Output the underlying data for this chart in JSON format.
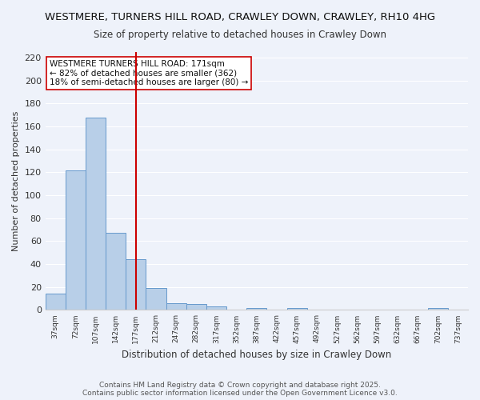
{
  "title1": "WESTMERE, TURNERS HILL ROAD, CRAWLEY DOWN, CRAWLEY, RH10 4HG",
  "title2": "Size of property relative to detached houses in Crawley Down",
  "xlabel": "Distribution of detached houses by size in Crawley Down",
  "ylabel": "Number of detached properties",
  "bar_values": [
    14,
    122,
    168,
    67,
    44,
    19,
    6,
    5,
    3,
    0,
    2,
    0,
    2,
    0,
    0,
    0,
    0,
    0,
    0,
    2,
    0
  ],
  "bar_labels": [
    "37sqm",
    "72sqm",
    "107sqm",
    "142sqm",
    "177sqm",
    "212sqm",
    "247sqm",
    "282sqm",
    "317sqm",
    "352sqm",
    "387sqm",
    "422sqm",
    "457sqm",
    "492sqm",
    "527sqm",
    "562sqm",
    "597sqm",
    "632sqm",
    "667sqm",
    "702sqm",
    "737sqm"
  ],
  "bar_color": "#b8cfe8",
  "bar_edge_color": "#6699cc",
  "bg_color": "#eef2fa",
  "grid_color": "#ffffff",
  "vline_x": 4.0,
  "vline_color": "#cc0000",
  "annotation_text": "WESTMERE TURNERS HILL ROAD: 171sqm\n← 82% of detached houses are smaller (362)\n18% of semi-detached houses are larger (80) →",
  "annotation_box_color": "#ffffff",
  "annotation_box_edge": "#cc0000",
  "ylim": [
    0,
    225
  ],
  "yticks": [
    0,
    20,
    40,
    60,
    80,
    100,
    120,
    140,
    160,
    180,
    200,
    220
  ],
  "footer1": "Contains HM Land Registry data © Crown copyright and database right 2025.",
  "footer2": "Contains public sector information licensed under the Open Government Licence v3.0."
}
